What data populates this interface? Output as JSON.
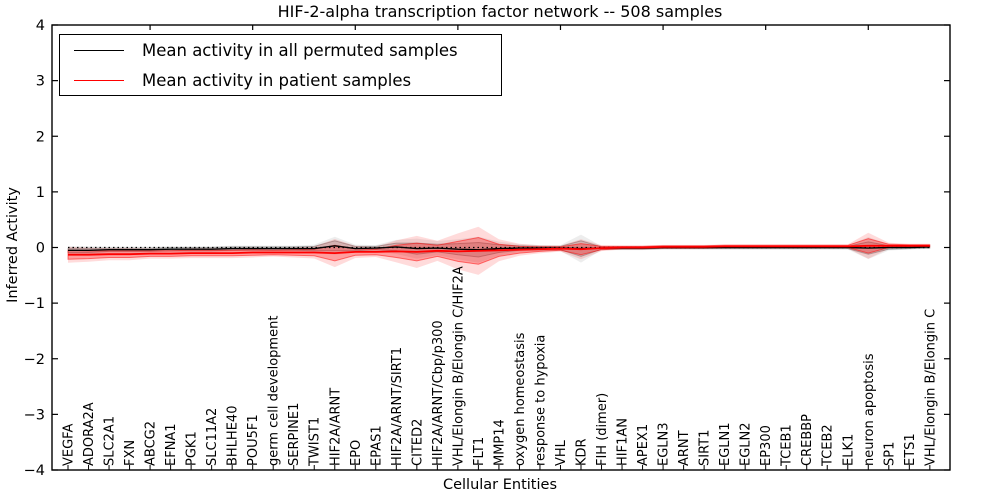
{
  "figure": {
    "title": "HIF-2-alpha transcription factor network -- 508 samples",
    "xlabel": "Cellular Entities",
    "ylabel": "Inferred Activity"
  },
  "legend": {
    "items": [
      {
        "label": "Mean activity in all permuted samples",
        "color": "#000000"
      },
      {
        "label": "Mean activity in patient samples",
        "color": "#ff0000"
      }
    ],
    "position": "upper left"
  },
  "chart_data": {
    "type": "line",
    "title": "HIF-2-alpha transcription factor network -- 508 samples",
    "xlabel": "Cellular Entities",
    "ylabel": "Inferred Activity",
    "ylim": [
      -4,
      4
    ],
    "yticks": [
      -4,
      -3,
      -2,
      -1,
      0,
      1,
      2,
      3,
      4
    ],
    "grid": false,
    "zero_reference_line": "dotted",
    "legend_position": "upper left",
    "categories": [
      "VEGFA",
      "ADORA2A",
      "SLC2A1",
      "FXN",
      "ABCG2",
      "EFNA1",
      "PGK1",
      "SLC11A2",
      "BHLHE40",
      "POU5F1",
      "germ cell development",
      "SERPINE1",
      "TWIST1",
      "HIF2A/ARNT",
      "EPO",
      "EPAS1",
      "HIF2A/ARNT/SIRT1",
      "CITED2",
      "HIF2A/ARNT/Cbp/p300",
      "VHL/Elongin B/Elongin C/HIF2A",
      "FLT1",
      "MMP14",
      "oxygen homeostasis",
      "response to hypoxia",
      "VHL",
      "KDR",
      "FIH (dimer)",
      "HIF1AN",
      "APEX1",
      "EGLN3",
      "ARNT",
      "SIRT1",
      "EGLN1",
      "EGLN2",
      "EP300",
      "TCEB1",
      "CREBBP",
      "TCEB2",
      "ELK1",
      "neuron apoptosis",
      "SP1",
      "ETS1",
      "VHL/Elongin B/Elongin C"
    ],
    "series": [
      {
        "name": "Mean activity in all permuted samples",
        "color": "#000000",
        "band_fill_inner": "rgba(0,0,0,0.13)",
        "band_fill_outer": "rgba(0,0,0,0.07)",
        "band_edge": "rgba(0,0,0,0.25)",
        "values": [
          -0.05,
          -0.05,
          -0.04,
          -0.04,
          -0.04,
          -0.03,
          -0.03,
          -0.03,
          -0.02,
          -0.02,
          -0.02,
          -0.02,
          -0.02,
          0.03,
          -0.02,
          -0.01,
          0.01,
          -0.02,
          -0.01,
          -0.03,
          -0.04,
          -0.02,
          -0.01,
          -0.01,
          -0.01,
          -0.02,
          -0.01,
          -0.01,
          -0.01,
          0.0,
          0.0,
          0.0,
          0.0,
          0.0,
          0.0,
          0.0,
          0.0,
          0.0,
          0.0,
          -0.01,
          0.0,
          0.0,
          0.01
        ],
        "std": [
          0.04,
          0.04,
          0.03,
          0.03,
          0.03,
          0.03,
          0.03,
          0.03,
          0.03,
          0.03,
          0.03,
          0.03,
          0.04,
          0.09,
          0.04,
          0.03,
          0.07,
          0.1,
          0.07,
          0.1,
          0.13,
          0.07,
          0.04,
          0.03,
          0.03,
          0.14,
          0.02,
          0.02,
          0.02,
          0.02,
          0.02,
          0.02,
          0.02,
          0.02,
          0.02,
          0.02,
          0.02,
          0.02,
          0.02,
          0.11,
          0.03,
          0.02,
          0.02
        ]
      },
      {
        "name": "Mean activity in patient samples",
        "color": "#ff0000",
        "band_fill_inner": "rgba(255,0,0,0.28)",
        "band_fill_outer": "rgba(255,0,0,0.14)",
        "band_edge": "rgba(255,0,0,0.5)",
        "values": [
          -0.13,
          -0.13,
          -0.12,
          -0.12,
          -0.11,
          -0.11,
          -0.1,
          -0.1,
          -0.1,
          -0.09,
          -0.09,
          -0.09,
          -0.09,
          -0.1,
          -0.08,
          -0.08,
          -0.07,
          -0.08,
          -0.06,
          -0.07,
          -0.06,
          -0.05,
          -0.04,
          -0.03,
          -0.02,
          -0.03,
          -0.01,
          0.0,
          0.0,
          0.01,
          0.01,
          0.01,
          0.02,
          0.02,
          0.02,
          0.02,
          0.02,
          0.02,
          0.02,
          0.03,
          0.03,
          0.03,
          0.03
        ],
        "std": [
          0.08,
          0.07,
          0.06,
          0.06,
          0.05,
          0.05,
          0.05,
          0.05,
          0.05,
          0.05,
          0.04,
          0.05,
          0.06,
          0.14,
          0.06,
          0.05,
          0.11,
          0.16,
          0.1,
          0.18,
          0.24,
          0.11,
          0.06,
          0.04,
          0.03,
          0.1,
          0.03,
          0.02,
          0.02,
          0.02,
          0.02,
          0.02,
          0.02,
          0.02,
          0.02,
          0.02,
          0.02,
          0.02,
          0.02,
          0.13,
          0.03,
          0.02,
          0.02
        ]
      }
    ]
  }
}
